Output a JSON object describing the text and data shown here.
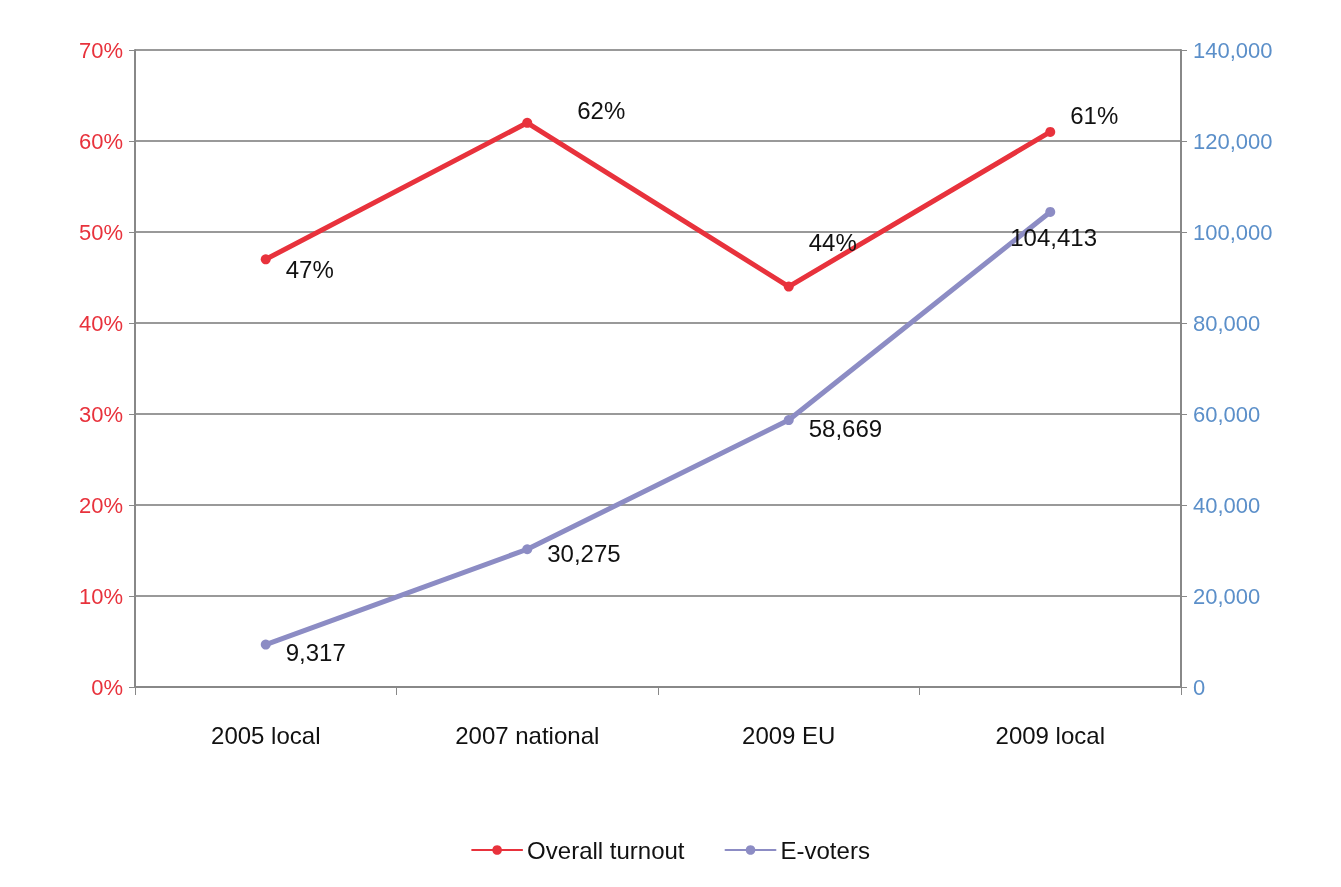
{
  "chart_data": {
    "type": "line",
    "categories": [
      "2005 local",
      "2007 national",
      "2009 EU",
      "2009 local"
    ],
    "series": [
      {
        "name": "Overall turnout",
        "color": "#e8323c",
        "values": [
          47,
          62,
          44,
          61
        ],
        "value_labels": [
          "47%",
          "62%",
          "44%",
          "61%"
        ]
      },
      {
        "name": "E-voters",
        "color": "#8c8cc4",
        "axis": "y2",
        "values": [
          9317,
          30275,
          58669,
          104413
        ],
        "value_labels": [
          "9,317",
          "30,275",
          "58,669",
          "104,413"
        ]
      }
    ],
    "ylim": [
      0,
      70
    ],
    "yticks": [
      {
        "value": 0,
        "label": "0%"
      },
      {
        "value": 10,
        "label": "10%"
      },
      {
        "value": 20,
        "label": "20%"
      },
      {
        "value": 30,
        "label": "30%"
      },
      {
        "value": 40,
        "label": "40%"
      },
      {
        "value": 50,
        "label": "50%"
      },
      {
        "value": 60,
        "label": "60%"
      },
      {
        "value": 70,
        "label": "70%"
      }
    ],
    "y2lim": [
      0,
      140000
    ],
    "y2ticks": [
      {
        "value": 0,
        "label": "0"
      },
      {
        "value": 20000,
        "label": "20,000"
      },
      {
        "value": 40000,
        "label": "40,000"
      },
      {
        "value": 60000,
        "label": "60,000"
      },
      {
        "value": 80000,
        "label": "80,000"
      },
      {
        "value": 100000,
        "label": "100,000"
      },
      {
        "value": 120000,
        "label": "120,000"
      },
      {
        "value": 140000,
        "label": "140,000"
      }
    ],
    "grid": "y",
    "legend": "bottom",
    "marker": "circle",
    "line_style": "solid"
  }
}
